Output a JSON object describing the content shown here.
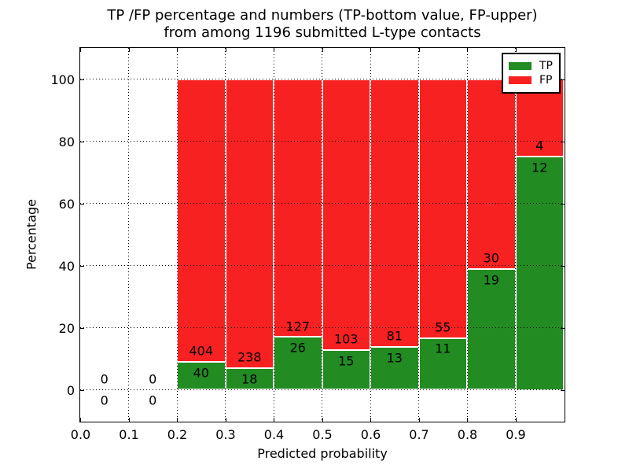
{
  "figure": {
    "title_line1": "TP /FP percentage and numbers (TP-bottom value, FP-upper)",
    "title_line2": "from among 1196 submitted L-type contacts"
  },
  "axes": {
    "xlabel": "Predicted probability",
    "ylabel": "Percentage",
    "x_tick_values": [
      0.0,
      0.1,
      0.2,
      0.3,
      0.4,
      0.5,
      0.6,
      0.7,
      0.8,
      0.9
    ],
    "x_tick_labels": [
      "0.0",
      "0.1",
      "0.2",
      "0.3",
      "0.4",
      "0.5",
      "0.6",
      "0.7",
      "0.8",
      "0.9"
    ],
    "y_tick_values": [
      0,
      20,
      40,
      60,
      80,
      100
    ],
    "y_tick_labels": [
      "0",
      "20",
      "40",
      "60",
      "80",
      "100"
    ],
    "xlim": [
      0.0,
      1.0
    ],
    "ylim": [
      -10,
      110
    ],
    "grid_style": "dotted"
  },
  "legend": {
    "position": "upper-right",
    "items": [
      {
        "label": "TP",
        "color": "#228b22"
      },
      {
        "label": "FP",
        "color": "#f82121"
      }
    ]
  },
  "colors": {
    "tp": "#228b22",
    "fp": "#f82121",
    "bar_edge": "#ffffff",
    "text": "#000000"
  },
  "chart_data": {
    "type": "bar",
    "stacked": true,
    "bin_width": 0.1,
    "total_contacts": 1196,
    "label_offset_pct": 3.5,
    "bins": [
      {
        "x0": 0.0,
        "x1": 0.1,
        "tp_count": 0,
        "fp_count": 0,
        "tp_pct": 0,
        "fp_pct": 0
      },
      {
        "x0": 0.1,
        "x1": 0.2,
        "tp_count": 0,
        "fp_count": 0,
        "tp_pct": 0,
        "fp_pct": 0
      },
      {
        "x0": 0.2,
        "x1": 0.3,
        "tp_count": 40,
        "fp_count": 404,
        "tp_pct": 9.01,
        "fp_pct": 90.99
      },
      {
        "x0": 0.3,
        "x1": 0.4,
        "tp_count": 18,
        "fp_count": 238,
        "tp_pct": 7.03,
        "fp_pct": 92.97
      },
      {
        "x0": 0.4,
        "x1": 0.5,
        "tp_count": 26,
        "fp_count": 127,
        "tp_pct": 16.99,
        "fp_pct": 83.01
      },
      {
        "x0": 0.5,
        "x1": 0.6,
        "tp_count": 15,
        "fp_count": 103,
        "tp_pct": 12.71,
        "fp_pct": 87.29
      },
      {
        "x0": 0.6,
        "x1": 0.7,
        "tp_count": 13,
        "fp_count": 81,
        "tp_pct": 13.83,
        "fp_pct": 86.17
      },
      {
        "x0": 0.7,
        "x1": 0.8,
        "tp_count": 11,
        "fp_count": 55,
        "tp_pct": 16.67,
        "fp_pct": 83.33
      },
      {
        "x0": 0.8,
        "x1": 0.9,
        "tp_count": 19,
        "fp_count": 30,
        "tp_pct": 38.78,
        "fp_pct": 61.22
      },
      {
        "x0": 0.9,
        "x1": 1.0,
        "tp_count": 12,
        "fp_count": 4,
        "tp_pct": 75.0,
        "fp_pct": 25.0
      }
    ]
  }
}
